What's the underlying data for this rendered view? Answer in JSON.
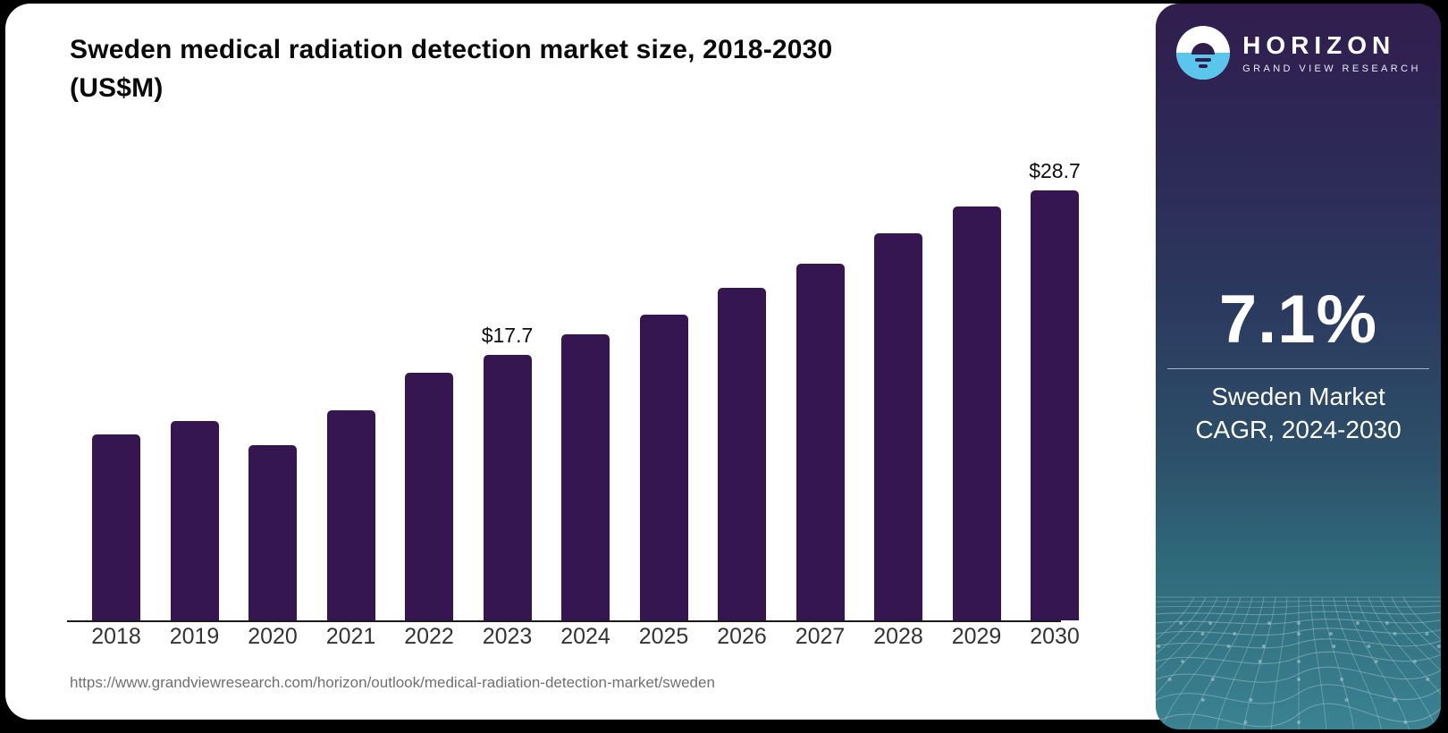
{
  "page": {
    "title_line1": "Sweden medical radiation detection market size, 2018-2030",
    "title_line2": "(US$M)",
    "source_url": "https://www.grandviewresearch.com/horizon/outlook/medical-radiation-detection-market/sweden"
  },
  "chart_data": {
    "type": "bar",
    "title": "Sweden medical radiation detection market size, 2018-2030 (US$M)",
    "unit": "US$M",
    "categories": [
      "2018",
      "2019",
      "2020",
      "2021",
      "2022",
      "2023",
      "2024",
      "2025",
      "2026",
      "2027",
      "2028",
      "2029",
      "2030"
    ],
    "values": [
      12.4,
      13.3,
      11.7,
      14.0,
      16.5,
      17.7,
      19.1,
      20.4,
      22.2,
      23.8,
      25.8,
      27.6,
      28.7
    ],
    "bar_labels": [
      null,
      null,
      null,
      null,
      null,
      "$17.7",
      null,
      null,
      null,
      null,
      null,
      null,
      "$28.7"
    ],
    "ylim": [
      0,
      30
    ],
    "gridlines": false,
    "legend": "none",
    "bar_color": "#361651",
    "axis_label_color": "#333333"
  },
  "sidebar": {
    "brand": {
      "name": "HORIZON",
      "subtitle": "GRAND VIEW RESEARCH",
      "logo_icon": "horizon-sun-icon",
      "logo_blue": "#5bc6ec",
      "logo_purple": "#301d4e"
    },
    "stat": {
      "value": "7.1%",
      "caption_line1": "Sweden Market",
      "caption_line2": "CAGR, 2024-2030"
    },
    "colors": {
      "top": "#301d4e",
      "middle": "#2b3a5f",
      "bottom": "#3b8292",
      "mesh_line": "#a9cbd1"
    }
  }
}
